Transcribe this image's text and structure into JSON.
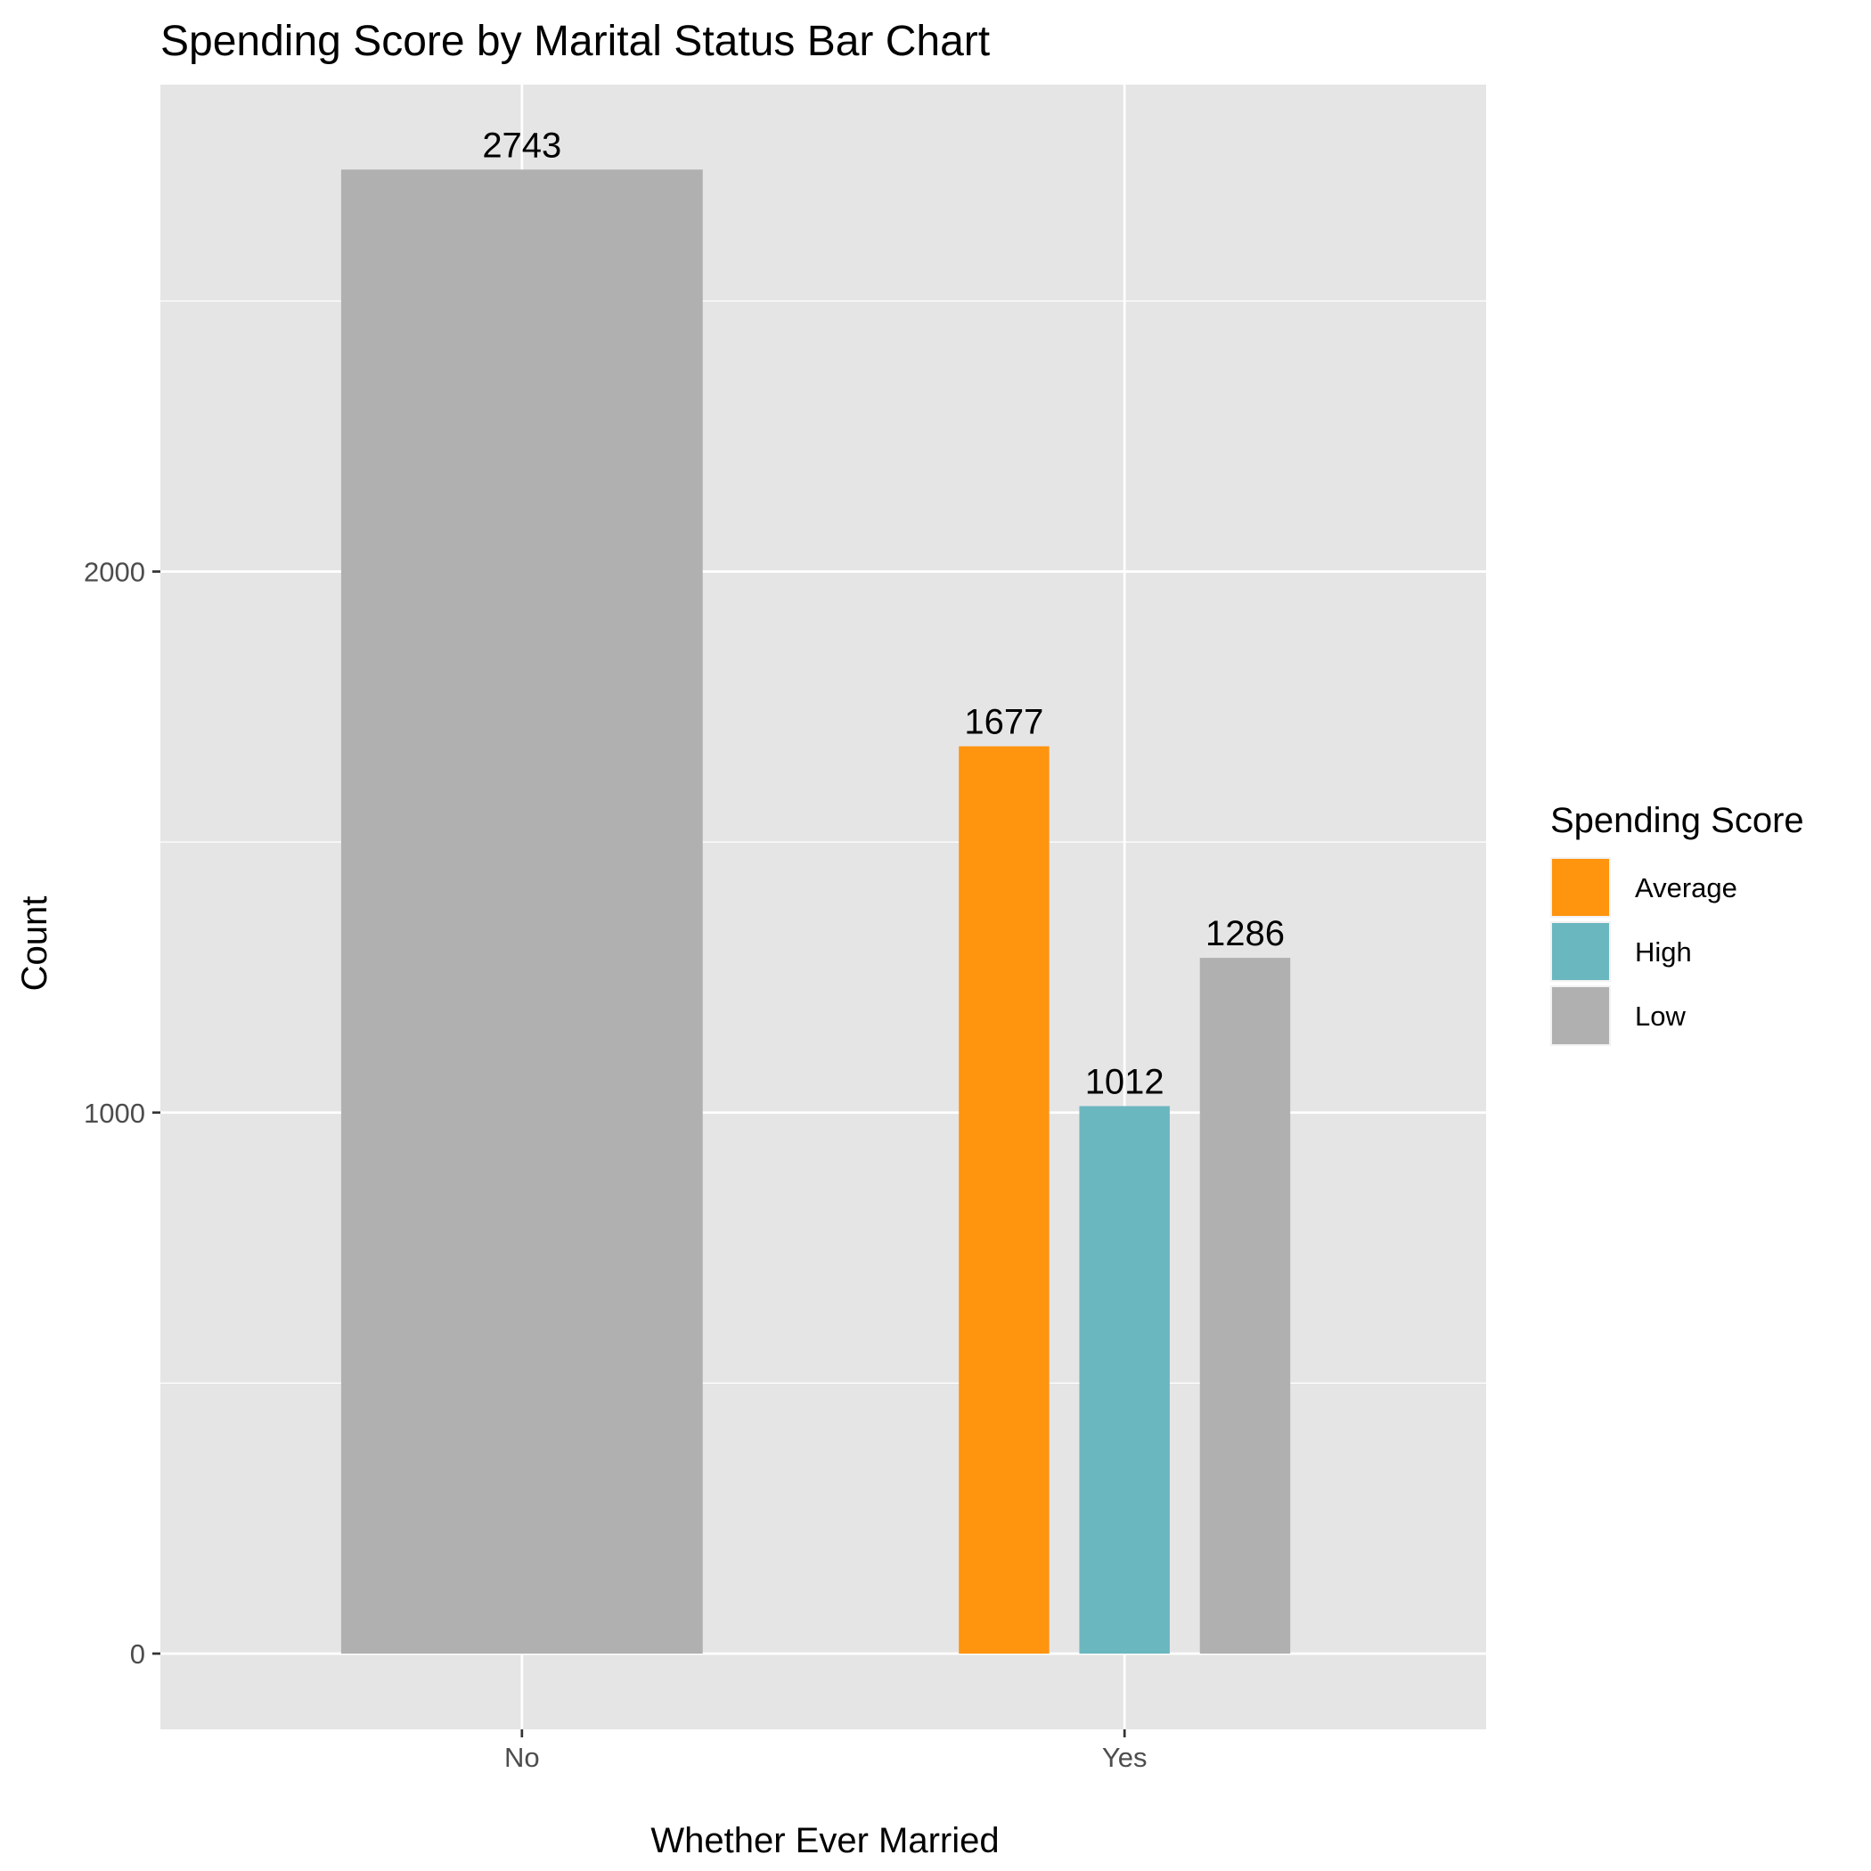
{
  "chart_data": {
    "type": "bar",
    "title": "Spending Score by Marital Status Bar Chart",
    "xlabel": "Whether Ever Married",
    "ylabel": "Count",
    "categories": [
      "No",
      "Yes"
    ],
    "ylim": [
      -140,
      2900
    ],
    "yticks": [
      0,
      1000,
      2000
    ],
    "grid": true,
    "legend": {
      "title": "Spending Score",
      "position": "right",
      "items": [
        {
          "label": "Average",
          "color": "#FF940E"
        },
        {
          "label": "High",
          "color": "#6BB7C0"
        },
        {
          "label": "Low",
          "color": "#B0B0B0"
        }
      ]
    },
    "bars": [
      {
        "category": "No",
        "group": "Low",
        "value": 2743,
        "label": "2743"
      },
      {
        "category": "Yes",
        "group": "Average",
        "value": 1677,
        "label": "1677"
      },
      {
        "category": "Yes",
        "group": "High",
        "value": 1012,
        "label": "1012"
      },
      {
        "category": "Yes",
        "group": "Low",
        "value": 1286,
        "label": "1286"
      }
    ]
  }
}
